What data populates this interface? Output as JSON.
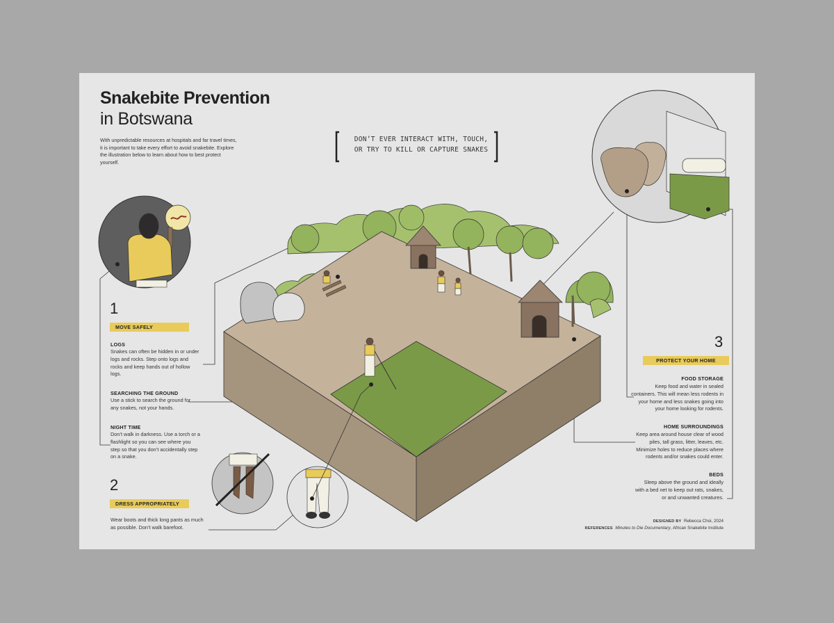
{
  "title": {
    "line1": "Snakebite Prevention",
    "line2": "in Botswana"
  },
  "intro": "With unpredictable resources at hospitals and far travel times, it is important to take every effort to avoid snakebite. Explore the illustration below to learn about how to best protect yourself.",
  "warning": {
    "line1": "DON’T EVER INTERACT WITH, TOUCH,",
    "line2": "OR TRY TO KILL OR CAPTURE SNAKES"
  },
  "sections": {
    "move_safely": {
      "number": "1",
      "tag": "MOVE SAFELY",
      "items": [
        {
          "heading": "LOGS",
          "text": "Snakes can often be hidden in or under logs and rocks. Step onto logs and rocks and keep hands out of hollow logs."
        },
        {
          "heading": "SEARCHING THE GROUND",
          "text": "Use a stick to search the ground for any snakes, not your hands."
        },
        {
          "heading": "NIGHT TIME",
          "text": "Don’t walk in darkness. Use a torch or a flashlight so you can see where you step so that you don’t accidentally step on a snake."
        }
      ]
    },
    "dress": {
      "number": "2",
      "tag": "DRESS APPROPRIATELY",
      "text": "Wear boots and thick long pants as much as possible. Don’t walk barefoot."
    },
    "home": {
      "number": "3",
      "tag": "PROTECT YOUR HOME",
      "items": [
        {
          "heading": "FOOD STORAGE",
          "text": "Keep food and water in sealed containers. This will mean less rodents in your home and less snakes going into your home looking for rodents."
        },
        {
          "heading": "HOME SURROUNDINGS",
          "text": "Keep area around house clear of wood piles, tall grass, litter, leaves, etc. Minimize holes to reduce places where rodents and/or snakes could enter."
        },
        {
          "heading": "BEDS",
          "text": "Sleep above the ground and ideally with a bed net to keep out rats, snakes, or and unwanted creatures."
        }
      ]
    }
  },
  "credits": {
    "designed_label": "DESIGNED BY",
    "designed_value": "Rebecca Choi, 2024",
    "references_label": "REFERENCES",
    "references_italic": "Minutes to Die Documentary",
    "references_rest": ", African Snakebite Institute"
  },
  "colors": {
    "background": "#e6e6e6",
    "accent": "#e8cb5a",
    "ground": "#c4b29b",
    "grass": "#7b9a47",
    "soil_side": "#a6957e"
  }
}
